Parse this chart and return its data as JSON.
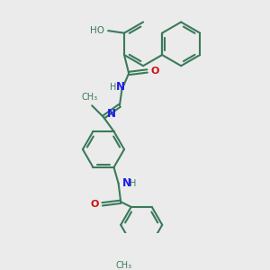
{
  "bg_color": "#ebebeb",
  "bond_color": "#3a7a5a",
  "N_color": "#1a1aee",
  "O_color": "#cc1111",
  "figsize": [
    3.0,
    3.0
  ],
  "dpi": 100,
  "xlim": [
    0,
    100
  ],
  "ylim": [
    0,
    100
  ]
}
